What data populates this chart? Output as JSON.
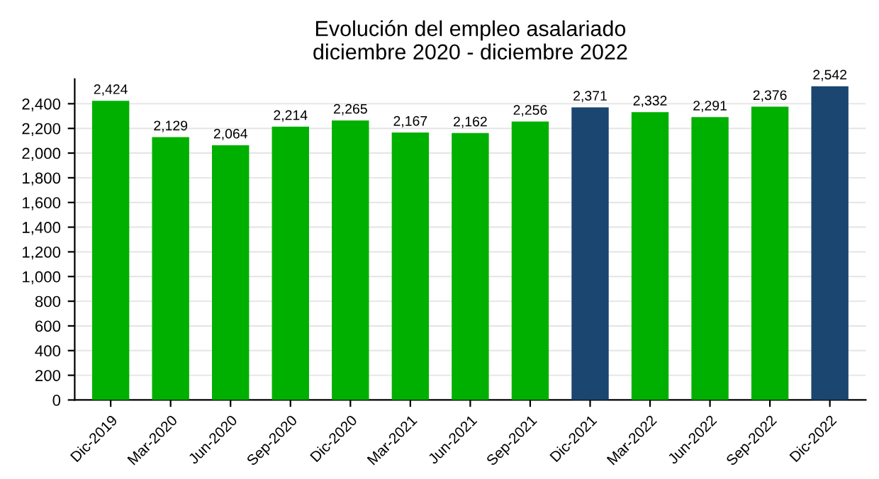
{
  "chart_data": {
    "type": "bar",
    "title": "Evolución del empleo asalariado\ndiciembre 2020 - diciembre 2022",
    "categories": [
      "Dic-2019",
      "Mar-2020",
      "Jun-2020",
      "Sep-2020",
      "Dic-2020",
      "Mar-2021",
      "Jun-2021",
      "Sep-2021",
      "Dic-2021",
      "Mar-2022",
      "Jun-2022",
      "Sep-2022",
      "Dic-2022"
    ],
    "values": [
      2424,
      2129,
      2064,
      2214,
      2265,
      2167,
      2162,
      2256,
      2371,
      2332,
      2291,
      2376,
      2542
    ],
    "value_labels": [
      "2,424",
      "2,129",
      "2,064",
      "2,214",
      "2,265",
      "2,167",
      "2,162",
      "2,256",
      "2,371",
      "2,332",
      "2,291",
      "2,376",
      "2,542"
    ],
    "colors": [
      "#00b000",
      "#00b000",
      "#00b000",
      "#00b000",
      "#00b000",
      "#00b000",
      "#00b000",
      "#00b000",
      "#1a4670",
      "#00b000",
      "#00b000",
      "#00b000",
      "#1a4670"
    ],
    "ylim": [
      0,
      2600
    ],
    "yticks": [
      {
        "value": 0,
        "label": "0"
      },
      {
        "value": 200,
        "label": "200"
      },
      {
        "value": 400,
        "label": "400"
      },
      {
        "value": 600,
        "label": "600"
      },
      {
        "value": 800,
        "label": "800"
      },
      {
        "value": 1000,
        "label": "1,000"
      },
      {
        "value": 1200,
        "label": "1,200"
      },
      {
        "value": 1400,
        "label": "1,400"
      },
      {
        "value": 1600,
        "label": "1,600"
      },
      {
        "value": 1800,
        "label": "1,800"
      },
      {
        "value": 2000,
        "label": "2,000"
      },
      {
        "value": 2200,
        "label": "2,200"
      },
      {
        "value": 2400,
        "label": "2,400"
      }
    ],
    "grid": "y"
  }
}
